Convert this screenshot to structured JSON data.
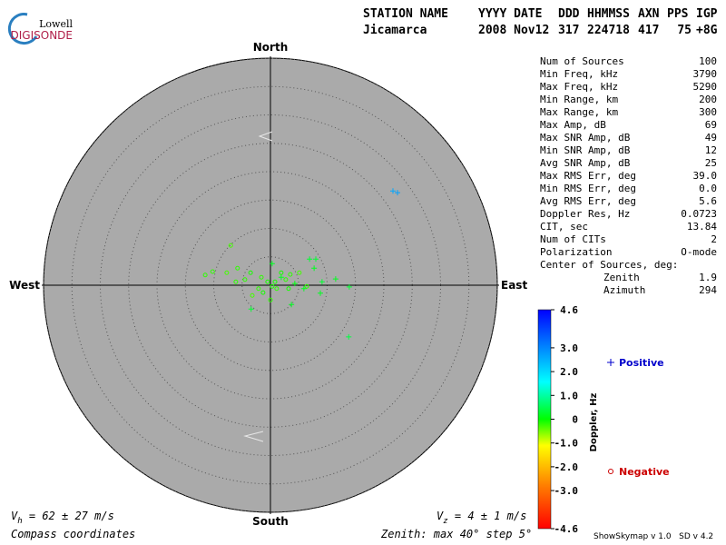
{
  "logo": {
    "top": "Lowell",
    "bottom": "DIGISONDE"
  },
  "header": {
    "columns": [
      "STATION NAME",
      "YYYY DATE",
      "DDD",
      "HHMMSS",
      "AXN",
      "PPS",
      "IGP"
    ],
    "values": [
      "Jicamarca",
      "2008 Nov12",
      "317",
      "224718",
      "417",
      "75",
      "+8G"
    ]
  },
  "stats": {
    "rows": [
      [
        "Num of Sources",
        "100"
      ],
      [
        "Min Freq, kHz",
        "3790"
      ],
      [
        "Max Freq, kHz",
        "5290"
      ],
      [
        "Min Range, km",
        "200"
      ],
      [
        "Max Range, km",
        "300"
      ],
      [
        "Max Amp, dB",
        "69"
      ],
      [
        "Max SNR Amp, dB",
        "49"
      ],
      [
        "Min SNR Amp, dB",
        "12"
      ],
      [
        "Avg SNR Amp, dB",
        "25"
      ],
      [
        "Max RMS Err, deg",
        "39.0"
      ],
      [
        "Min RMS Err, deg",
        "0.0"
      ],
      [
        "Avg RMS Err, deg",
        "5.6"
      ],
      [
        "Doppler Res, Hz",
        "0.0723"
      ],
      [
        "CIT, sec",
        "13.84"
      ],
      [
        "Num of CITs",
        "2"
      ],
      [
        "Polarization",
        "O-mode"
      ]
    ],
    "center_title": "Center of Sources, deg:",
    "center_rows": [
      [
        "Zenith",
        "1.9"
      ],
      [
        "Azimuth",
        "294"
      ]
    ]
  },
  "chart_data": {
    "type": "skymap",
    "compass": {
      "north": "North",
      "south": "South",
      "east": "East",
      "west": "West"
    },
    "rlim": [
      0,
      40
    ],
    "rticks": [
      5,
      10,
      15,
      20,
      25,
      30,
      35,
      40
    ],
    "series": [
      {
        "name": "Positive",
        "color": "#0000cc",
        "marker": "+",
        "x": [
          6.9,
          8.0,
          7.7,
          9.1,
          11.5,
          13.9,
          8.8,
          13.8,
          3.7,
          -3.4,
          0.3,
          5.9,
          4.3,
          1.9,
          21.6,
          22.4
        ],
        "y": [
          4.6,
          4.6,
          3.0,
          0.6,
          1.1,
          -0.3,
          -1.4,
          -9.1,
          -3.4,
          -4.2,
          3.8,
          -0.6,
          0.3,
          1.4,
          16.6,
          16.3
        ],
        "doppler": [
          0.3,
          0.3,
          0.2,
          0.3,
          0.2,
          0.3,
          0.2,
          0.4,
          0.2,
          0.3,
          0.2,
          0.2,
          0.1,
          0.2,
          2.6,
          2.7
        ]
      },
      {
        "name": "Negative",
        "color": "#cc0000",
        "marker": "o",
        "x": [
          -7.0,
          -11.5,
          -10.2,
          -7.7,
          -5.8,
          -3.5,
          -1.6,
          -0.5,
          0.3,
          1.1,
          -2.1,
          -3.2,
          1.9,
          2.7,
          3.5,
          5.1,
          -1.3,
          0,
          0.8,
          -4.5,
          -6.1,
          6.4,
          3.2
        ],
        "y": [
          7.0,
          1.8,
          2.4,
          2.2,
          3.0,
          2.2,
          1.4,
          0.6,
          -0.2,
          -0.6,
          -0.6,
          -1.8,
          2.2,
          1.0,
          1.9,
          2.2,
          -1.3,
          -2.6,
          0.6,
          1.0,
          0.6,
          -0.2,
          -0.6
        ],
        "doppler": [
          -0.3,
          -0.2,
          -0.2,
          -0.3,
          -0.2,
          -0.1,
          -0.2,
          -0.1,
          -0.1,
          -0.2,
          -0.2,
          -0.3,
          -0.1,
          -0.2,
          -0.2,
          -0.3,
          -0.1,
          -0.2,
          -0.1,
          -0.2,
          -0.2,
          -0.2,
          -0.1
        ]
      }
    ],
    "colorbar": {
      "label": "Doppler, Hz",
      "lim": [
        -4.6,
        4.6
      ],
      "ticks": [
        4.6,
        {
          "value": 3,
          "label": "3.0"
        },
        {
          "value": 2,
          "label": "2.0"
        },
        {
          "value": 1,
          "label": "1.0"
        },
        0,
        {
          "value": -1,
          "label": "-1.0"
        },
        {
          "value": -2,
          "label": "-2.0"
        },
        {
          "value": -3,
          "label": "-3.0"
        },
        -4.6
      ]
    },
    "vh": {
      "symbol": "V",
      "sub": "h",
      "text": " = 62 ± 27 m/s"
    },
    "vz": {
      "symbol": "V",
      "sub": "z",
      "text": " = 4 ± 1 m/s"
    },
    "coords_note": "Compass coordinates",
    "zenith_note": "Zenith: max 40°  step 5°",
    "version": "ShowSkymap v 1.0   SD v 4.2"
  }
}
